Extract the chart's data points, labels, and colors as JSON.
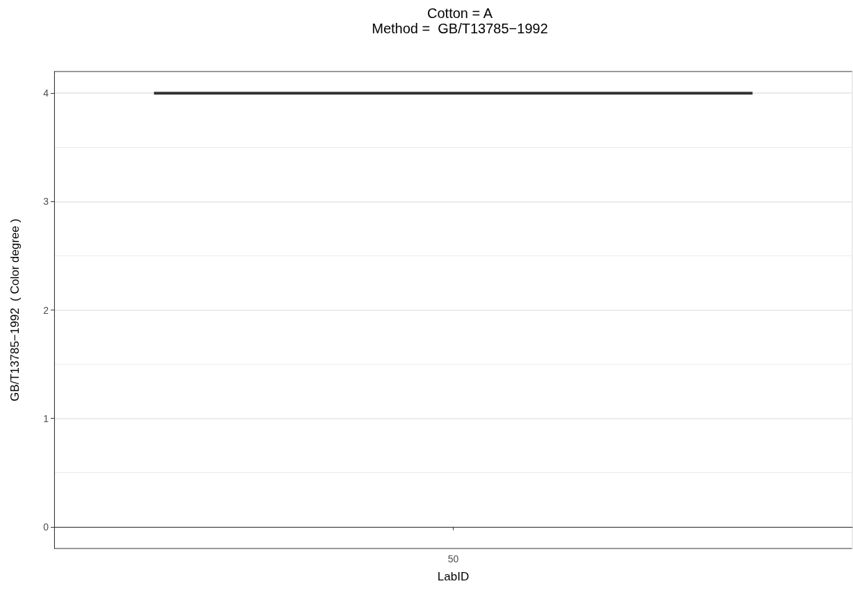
{
  "chart_data": {
    "type": "box",
    "title": "Cotton = A",
    "subtitle": "Method =  GB/T13785−1992",
    "xlabel": "LabID",
    "ylabel": "GB/T13785−1992  ( Color degree )",
    "categories": [
      "50"
    ],
    "boxes": [
      {
        "low": 4,
        "q1": 4,
        "median": 4,
        "q3": 4,
        "high": 4
      }
    ],
    "color": "#333333",
    "ylim": [
      -0.2,
      4.2
    ],
    "yticks": [
      0,
      1,
      2,
      3,
      4
    ],
    "grid": true
  }
}
